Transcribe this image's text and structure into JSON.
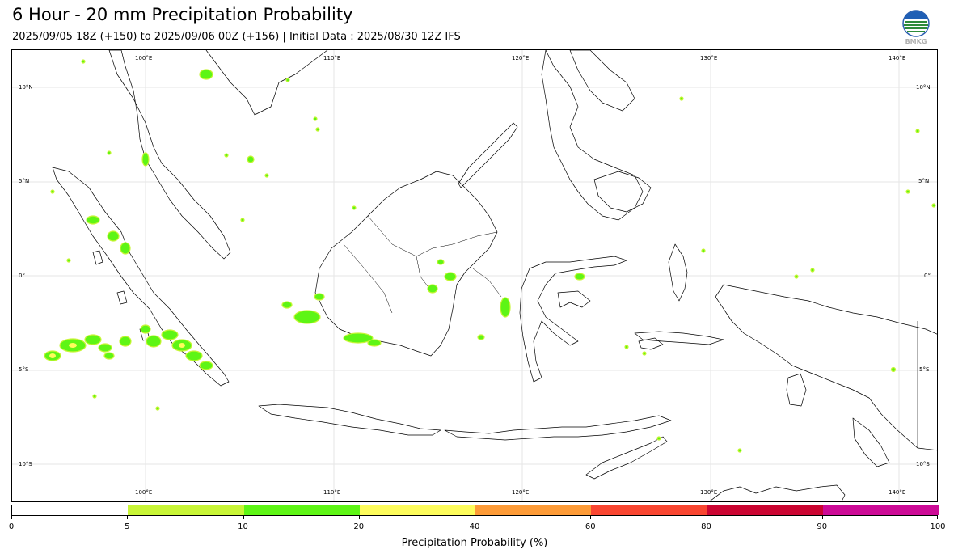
{
  "title": "6 Hour - 20 mm Precipitation Probability",
  "subtitle": "2025/09/05 18Z (+150) to 2025/09/06 00Z (+156) | Initial Data : 2025/08/30 12Z IFS",
  "logo_text": "BMKG",
  "map": {
    "lon_labels": [
      "100°E",
      "110°E",
      "120°E",
      "130°E",
      "140°E"
    ],
    "lat_labels": [
      "10°N",
      "5°N",
      "0°",
      "5°S",
      "10°S"
    ]
  },
  "colorbar": {
    "title": "Precipitation Probability (%)",
    "tick_labels": [
      "0",
      "5",
      "10",
      "20",
      "40",
      "60",
      "80",
      "90",
      "100"
    ],
    "colors": [
      "#ffffff",
      "#c8f536",
      "#5ef515",
      "#fdfc5c",
      "#fd9b37",
      "#f94631",
      "#cb0532",
      "#cc0b96"
    ]
  }
}
